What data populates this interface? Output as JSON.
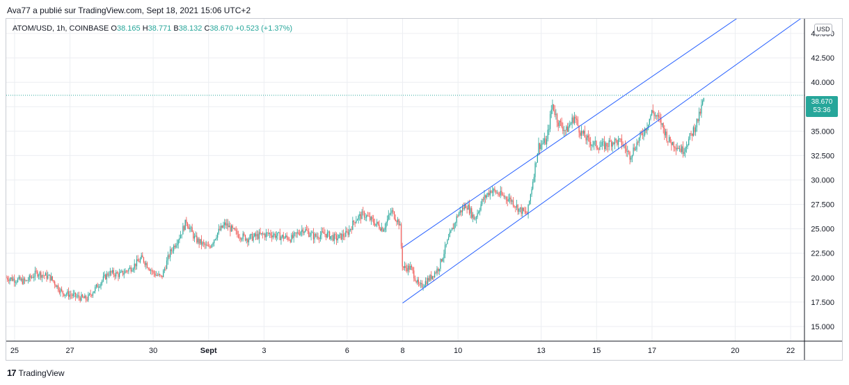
{
  "header": {
    "text": "Ava77 a  publié sur TradingView.com, Sept 18, 2021 15:06 UTC+2"
  },
  "ohlc": {
    "symbol": "ATOM/USD, 1h, COINBASE",
    "o_label": "O",
    "o_value": "38.165",
    "h_label": "H",
    "h_value": "38.771",
    "b_label": "B",
    "b_value": "38.132",
    "c_label": "C",
    "c_value": "38.670",
    "change": "+0.523 (+1.37%)"
  },
  "currency_button": "USD",
  "last_price": {
    "price": "38.670",
    "countdown": "53:36"
  },
  "footer": {
    "brand": "TradingView",
    "mark": "17"
  },
  "colors": {
    "up": "#26a69a",
    "down": "#ef5350",
    "channel": "#2962ff",
    "grid": "#eceef2"
  },
  "chart_data": {
    "type": "candlestick",
    "symbol": "ATOM/USD",
    "interval": "1h",
    "exchange": "COINBASE",
    "ylim": [
      13.5,
      46.5
    ],
    "yticks": [
      "15.000",
      "17.500",
      "20.000",
      "22.500",
      "25.000",
      "27.500",
      "30.000",
      "32.500",
      "35.000",
      "37.500",
      "40.000",
      "42.500",
      "45.000"
    ],
    "xlim_days": [
      -0.3,
      28.5
    ],
    "xticks": [
      {
        "label": "25",
        "day": 0
      },
      {
        "label": "27",
        "day": 2
      },
      {
        "label": "30",
        "day": 5
      },
      {
        "label": "Sept",
        "day": 7
      },
      {
        "label": "3",
        "day": 9
      },
      {
        "label": "6",
        "day": 12
      },
      {
        "label": "8",
        "day": 14
      },
      {
        "label": "10",
        "day": 16
      },
      {
        "label": "13",
        "day": 19
      },
      {
        "label": "15",
        "day": 21
      },
      {
        "label": "17",
        "day": 23
      },
      {
        "label": "20",
        "day": 26
      },
      {
        "label": "22",
        "day": 28
      }
    ],
    "price_path": [
      [
        -0.3,
        20.0
      ],
      [
        0.4,
        19.6
      ],
      [
        0.8,
        20.5
      ],
      [
        1.3,
        20.0
      ],
      [
        1.7,
        18.5
      ],
      [
        2.3,
        18.0
      ],
      [
        2.6,
        17.8
      ],
      [
        3.0,
        19.2
      ],
      [
        3.4,
        20.5
      ],
      [
        3.8,
        20.3
      ],
      [
        4.2,
        21.0
      ],
      [
        4.6,
        22.0
      ],
      [
        5.0,
        20.5
      ],
      [
        5.3,
        20.0
      ],
      [
        5.6,
        22.5
      ],
      [
        6.0,
        24.5
      ],
      [
        6.2,
        25.8
      ],
      [
        6.5,
        24.0
      ],
      [
        7.0,
        23.0
      ],
      [
        7.3,
        24.5
      ],
      [
        7.6,
        25.5
      ],
      [
        8.0,
        24.5
      ],
      [
        8.4,
        24.0
      ],
      [
        8.8,
        24.3
      ],
      [
        9.2,
        24.5
      ],
      [
        9.6,
        24.2
      ],
      [
        10.0,
        24.0
      ],
      [
        10.4,
        25.0
      ],
      [
        10.8,
        24.2
      ],
      [
        11.2,
        24.5
      ],
      [
        11.6,
        24.0
      ],
      [
        12.0,
        24.5
      ],
      [
        12.3,
        26.0
      ],
      [
        12.6,
        26.5
      ],
      [
        12.9,
        25.8
      ],
      [
        13.3,
        25.0
      ],
      [
        13.6,
        26.8
      ],
      [
        13.9,
        25.5
      ],
      [
        14.0,
        21.0
      ],
      [
        14.3,
        21.0
      ],
      [
        14.6,
        19.0
      ],
      [
        15.0,
        20.0
      ],
      [
        15.3,
        21.0
      ],
      [
        15.6,
        23.5
      ],
      [
        16.0,
        26.5
      ],
      [
        16.3,
        27.5
      ],
      [
        16.6,
        26.0
      ],
      [
        16.9,
        28.0
      ],
      [
        17.2,
        29.0
      ],
      [
        17.5,
        28.5
      ],
      [
        17.9,
        28.0
      ],
      [
        18.2,
        27.0
      ],
      [
        18.5,
        26.5
      ],
      [
        18.7,
        30.0
      ],
      [
        18.9,
        33.5
      ],
      [
        19.2,
        34.0
      ],
      [
        19.4,
        37.8
      ],
      [
        19.6,
        36.0
      ],
      [
        19.9,
        35.0
      ],
      [
        20.2,
        36.5
      ],
      [
        20.4,
        35.0
      ],
      [
        20.7,
        34.0
      ],
      [
        21.0,
        33.5
      ],
      [
        21.3,
        33.5
      ],
      [
        21.6,
        34.0
      ],
      [
        21.9,
        33.8
      ],
      [
        22.2,
        32.5
      ],
      [
        22.5,
        34.0
      ],
      [
        22.8,
        35.5
      ],
      [
        23.0,
        37.0
      ],
      [
        23.3,
        36.0
      ],
      [
        23.6,
        34.0
      ],
      [
        23.9,
        33.5
      ],
      [
        24.1,
        33.0
      ],
      [
        24.4,
        34.5
      ],
      [
        24.7,
        36.5
      ],
      [
        24.9,
        38.67
      ]
    ],
    "channel_lines": [
      {
        "from": [
          14.0,
          23.1
        ],
        "to": [
          26.3,
          47.0
        ]
      },
      {
        "from": [
          14.0,
          17.4
        ],
        "to": [
          28.5,
          46.8
        ]
      }
    ],
    "last_price_line": 38.67
  }
}
